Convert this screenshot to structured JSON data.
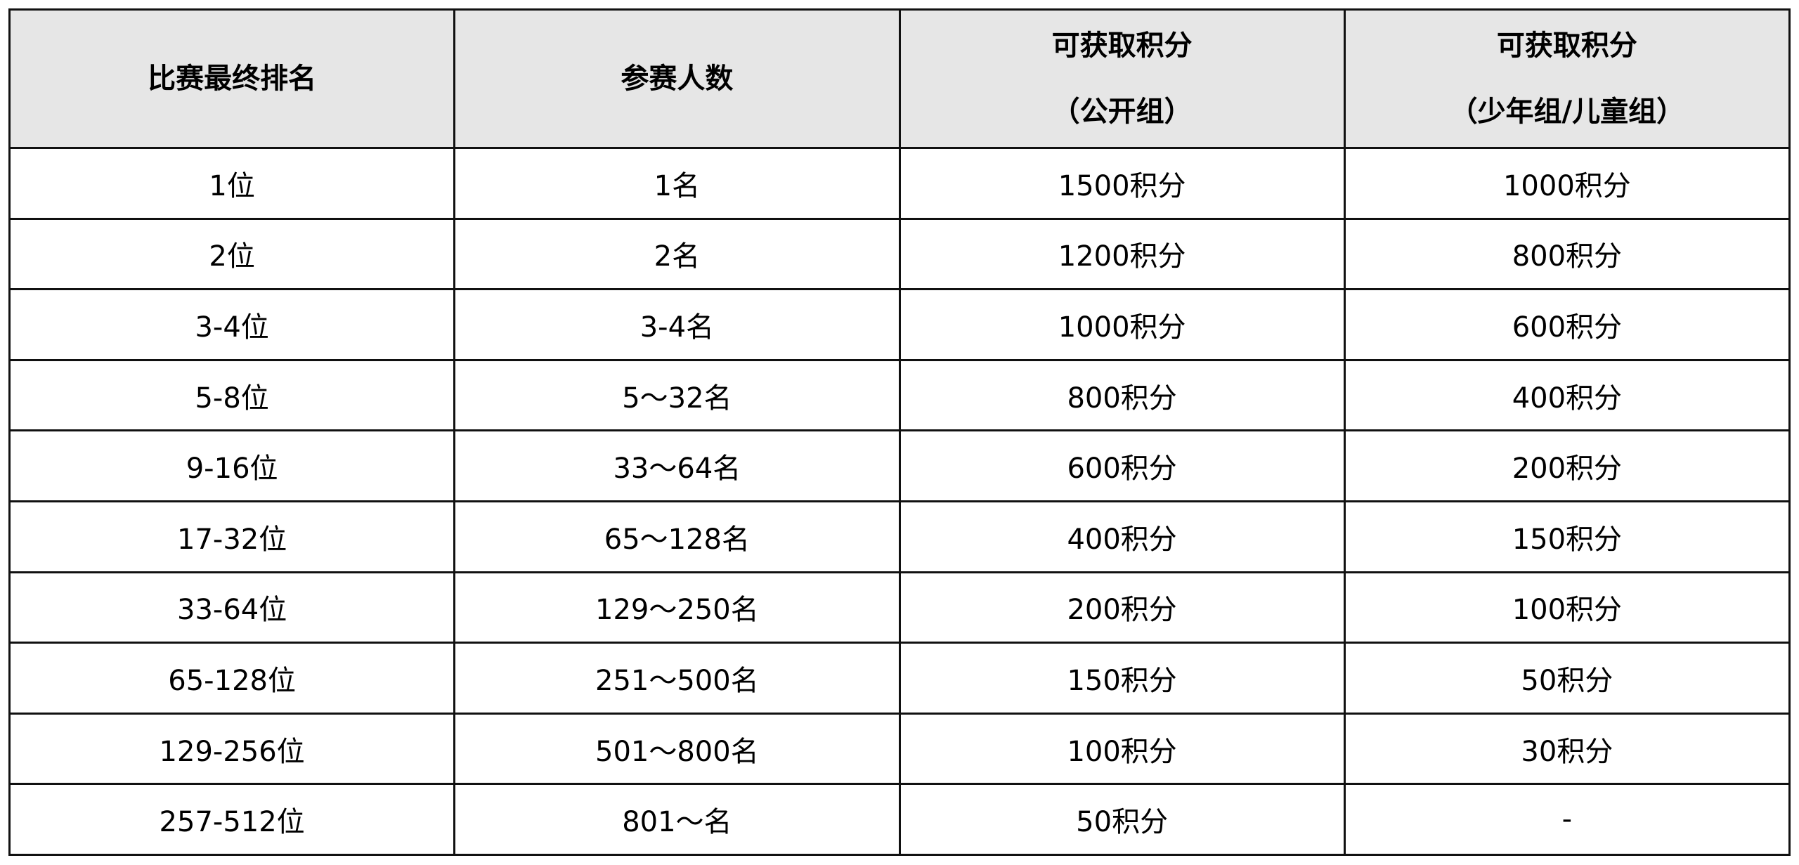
{
  "table": {
    "headers": [
      {
        "line1": "比赛最终排名",
        "line2": ""
      },
      {
        "line1": "参赛人数",
        "line2": ""
      },
      {
        "line1": "可获取积分",
        "line2": "（公开组）"
      },
      {
        "line1": "可获取积分",
        "line2": "（少年组/儿童组）"
      }
    ],
    "rows": [
      [
        "1位",
        "1名",
        "1500积分",
        "1000积分"
      ],
      [
        "2位",
        "2名",
        "1200积分",
        "800积分"
      ],
      [
        "3-4位",
        "3-4名",
        "1000积分",
        "600积分"
      ],
      [
        "5-8位",
        "5～32名",
        "800积分",
        "400积分"
      ],
      [
        "9-16位",
        "33～64名",
        "600积分",
        "200积分"
      ],
      [
        "17-32位",
        "65～128名",
        "400积分",
        "150积分"
      ],
      [
        "33-64位",
        "129～250名",
        "200积分",
        "100积分"
      ],
      [
        "65-128位",
        "251～500名",
        "150积分",
        "50积分"
      ],
      [
        "129-256位",
        "501～800名",
        "100积分",
        "30积分"
      ],
      [
        "257-512位",
        "801～名",
        "50积分",
        "-"
      ]
    ]
  }
}
